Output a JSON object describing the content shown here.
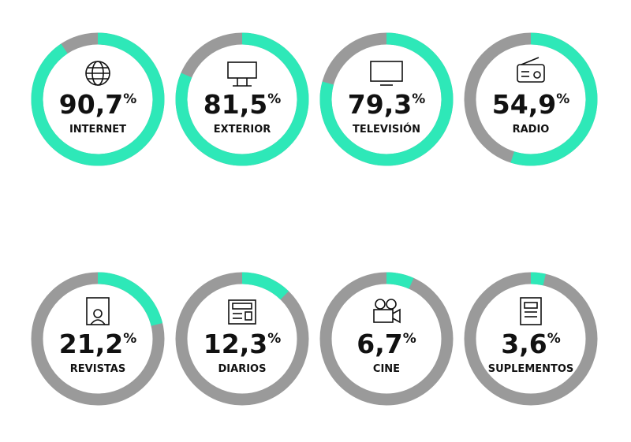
{
  "chart_data": {
    "type": "donut",
    "categories": [
      "INTERNET",
      "EXTERIOR",
      "TELEVISIÓN",
      "RADIO",
      "REVISTAS",
      "DIARIOS",
      "CINE",
      "SUPLEMENTOS"
    ],
    "values": [
      90.7,
      81.5,
      79.3,
      54.9,
      21.2,
      12.3,
      6.7,
      3.6
    ],
    "value_labels": [
      "90,7%",
      "81,5%",
      "79,3%",
      "54,9%",
      "21,2%",
      "12,3%",
      "6,7%",
      "3,6%"
    ],
    "color": "#2ee8b8",
    "remainder_color": "#9a9a9a"
  }
}
